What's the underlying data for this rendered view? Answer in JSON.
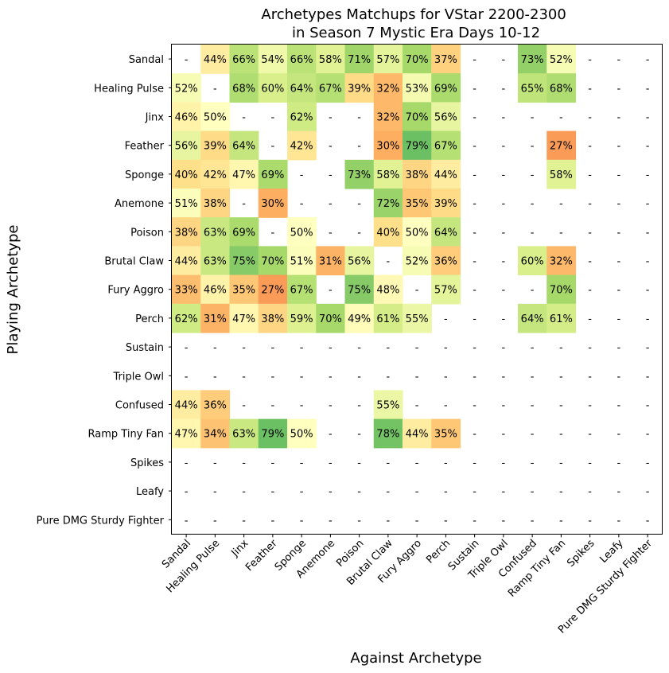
{
  "chart_data": {
    "type": "heatmap",
    "title": "Archetypes Matchups for VStar 2200-2300\nin Season 7 Mystic Era Days 10-12",
    "xlabel": "Against Archetype",
    "ylabel": "Playing Archetype",
    "rows": [
      "Sandal",
      "Healing Pulse",
      "Jinx",
      "Feather",
      "Sponge",
      "Anemone",
      "Poison",
      "Brutal Claw",
      "Fury Aggro",
      "Perch",
      "Sustain",
      "Triple Owl",
      "Confused",
      "Ramp Tiny Fan",
      "Spikes",
      "Leafy",
      "Pure DMG Sturdy Fighter"
    ],
    "columns": [
      "Sandal",
      "Healing Pulse",
      "Jinx",
      "Feather",
      "Sponge",
      "Anemone",
      "Poison",
      "Brutal Claw",
      "Fury Aggro",
      "Perch",
      "Sustain",
      "Triple Owl",
      "Confused",
      "Ramp Tiny Fan",
      "Spikes",
      "Leafy",
      "Pure DMG Sturdy Fighter"
    ],
    "missing_label": "-",
    "value_suffix": "%",
    "values": [
      [
        null,
        44,
        66,
        54,
        66,
        58,
        71,
        57,
        70,
        37,
        null,
        null,
        73,
        52,
        null,
        null,
        null
      ],
      [
        52,
        null,
        68,
        60,
        64,
        67,
        39,
        32,
        53,
        69,
        null,
        null,
        65,
        68,
        null,
        null,
        null
      ],
      [
        46,
        50,
        null,
        null,
        62,
        null,
        null,
        32,
        70,
        56,
        null,
        null,
        null,
        null,
        null,
        null,
        null
      ],
      [
        56,
        39,
        64,
        null,
        42,
        null,
        null,
        30,
        79,
        67,
        null,
        null,
        null,
        27,
        null,
        null,
        null
      ],
      [
        40,
        42,
        47,
        69,
        null,
        null,
        73,
        58,
        38,
        44,
        null,
        null,
        null,
        58,
        null,
        null,
        null
      ],
      [
        51,
        38,
        null,
        30,
        null,
        null,
        null,
        72,
        35,
        39,
        null,
        null,
        null,
        null,
        null,
        null,
        null
      ],
      [
        38,
        63,
        69,
        null,
        50,
        null,
        null,
        40,
        50,
        64,
        null,
        null,
        null,
        null,
        null,
        null,
        null
      ],
      [
        44,
        63,
        75,
        70,
        51,
        31,
        56,
        null,
        52,
        36,
        null,
        null,
        60,
        32,
        null,
        null,
        null
      ],
      [
        33,
        46,
        35,
        27,
        67,
        null,
        75,
        48,
        null,
        57,
        null,
        null,
        null,
        70,
        null,
        null,
        null
      ],
      [
        62,
        31,
        47,
        38,
        59,
        70,
        49,
        61,
        55,
        null,
        null,
        null,
        64,
        61,
        null,
        null,
        null
      ],
      [
        null,
        null,
        null,
        null,
        null,
        null,
        null,
        null,
        null,
        null,
        null,
        null,
        null,
        null,
        null,
        null,
        null
      ],
      [
        null,
        null,
        null,
        null,
        null,
        null,
        null,
        null,
        null,
        null,
        null,
        null,
        null,
        null,
        null,
        null,
        null
      ],
      [
        44,
        36,
        null,
        null,
        null,
        null,
        null,
        55,
        null,
        null,
        null,
        null,
        null,
        null,
        null,
        null,
        null
      ],
      [
        47,
        34,
        63,
        79,
        50,
        null,
        null,
        78,
        44,
        35,
        null,
        null,
        null,
        null,
        null,
        null,
        null
      ],
      [
        null,
        null,
        null,
        null,
        null,
        null,
        null,
        null,
        null,
        null,
        null,
        null,
        null,
        null,
        null,
        null,
        null
      ],
      [
        null,
        null,
        null,
        null,
        null,
        null,
        null,
        null,
        null,
        null,
        null,
        null,
        null,
        null,
        null,
        null,
        null
      ],
      [
        null,
        null,
        null,
        null,
        null,
        null,
        null,
        null,
        null,
        null,
        null,
        null,
        null,
        null,
        null,
        null,
        null
      ]
    ],
    "colormap": "RdYlGn",
    "value_range": [
      0,
      100
    ],
    "grid": false
  }
}
